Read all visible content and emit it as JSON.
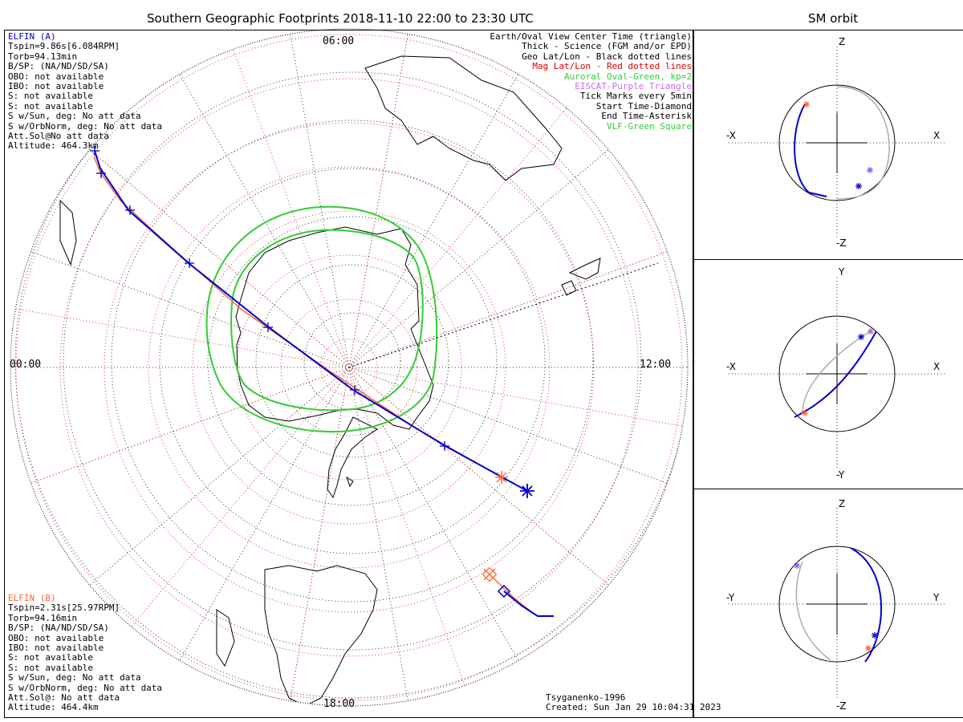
{
  "title": "Southern Geographic Footprints 2018-11-10 22:00 to 23:30 UTC",
  "sm_title": "SM orbit",
  "mlt_labels": {
    "top": "06:00",
    "bottom": "18:00",
    "left": "00:00",
    "right": "12:00"
  },
  "elfin_a": {
    "name": "ELFIN (A)",
    "lines": [
      "Tspin=9.86s[6.084RPM]",
      "Torb=94.13min",
      "B/SP: (NA/ND/SD/SA)",
      "OBO: not available",
      "IBO: not available",
      "S: not available",
      "S: not available",
      "S w/Sun, deg: No att data",
      "S w/OrbNorm, deg: No att data",
      "Att.Sol@No att data",
      "Altitude: 464.3km"
    ]
  },
  "elfin_b": {
    "name": "ELFIN (B)",
    "lines": [
      "Tspin=2.31s[25.97RPM]",
      "Torb=94.16min",
      "B/SP: (NA/ND/SD/SA)",
      "OBO: not available",
      "IBO: not available",
      "S: not available",
      "S: not available",
      "S w/Sun, deg: No att data",
      "S w/OrbNorm, deg: No att data",
      "Att.Sol@: No att data",
      "Altitude: 464.4km"
    ]
  },
  "legend": [
    {
      "text": "Earth/Oval View Center Time (triangle)",
      "color": "#000000"
    },
    {
      "text": "Thick - Science (FGM and/or EPD)",
      "color": "#000000"
    },
    {
      "text": "Geo Lat/Lon - Black dotted lines",
      "color": "#000000"
    },
    {
      "text": "Mag Lat/Lon - Red dotted lines",
      "color": "#e00000"
    },
    {
      "text": "Auroral Oval-Green, kp=2",
      "color": "#33cc33"
    },
    {
      "text": "EISCAT-Purple Triangle",
      "color": "#cc66ff"
    },
    {
      "text": "Tick Marks every 5min",
      "color": "#000000"
    },
    {
      "text": "Start Time-Diamond",
      "color": "#000000"
    },
    {
      "text": "End Time-Asterisk",
      "color": "#000000"
    },
    {
      "text": "VLF-Green Square",
      "color": "#33cc33"
    }
  ],
  "footer": {
    "model": "Tsyganenko-1996",
    "created": "Created: Sun Jan 29 10:04:31 2023"
  },
  "sm_panels": [
    {
      "top": "Z",
      "bottom": "-Z",
      "left": "-X",
      "right": "X"
    },
    {
      "top": "Y",
      "bottom": "-Y",
      "left": "-X",
      "right": "X"
    },
    {
      "top": "Z",
      "bottom": "-Z",
      "left": "-Y",
      "right": "Y"
    }
  ],
  "colors": {
    "elfin_a": "#0000cc",
    "elfin_b": "#ff6633",
    "oval": "#33cc33",
    "mag_grid": "#e00000",
    "geo_grid": "#000000",
    "orbit_other": "#aaaaaa"
  }
}
